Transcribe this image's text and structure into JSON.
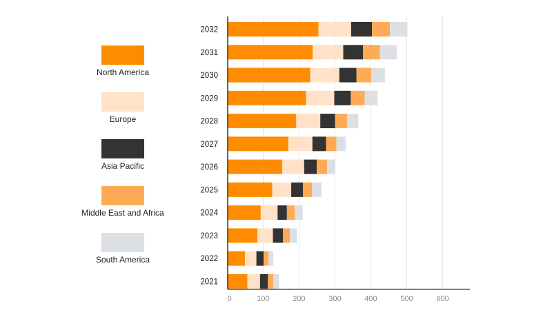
{
  "chart_data": {
    "type": "bar",
    "orientation": "horizontal",
    "stacked": true,
    "title": "",
    "xlabel": "",
    "ylabel": "",
    "categories": [
      "2032",
      "2031",
      "2030",
      "2029",
      "2028",
      "2027",
      "2026",
      "2025",
      "2024",
      "2023",
      "2022",
      "2021"
    ],
    "series": [
      {
        "name": "North America",
        "color": "#ff8c00",
        "values": [
          254,
          238,
          231,
          219,
          192,
          170,
          153,
          125,
          93,
          84,
          49,
          56
        ]
      },
      {
        "name": "Europe",
        "color": "#ffe2c7",
        "values": [
          91,
          85,
          81,
          79,
          67,
          67,
          61,
          53,
          47,
          43,
          32,
          35
        ]
      },
      {
        "name": "Asia Pacific",
        "color": "#333333",
        "values": [
          58,
          55,
          48,
          46,
          41,
          38,
          35,
          33,
          26,
          28,
          20,
          22
        ]
      },
      {
        "name": "Middle East and Africa",
        "color": "#ffab55",
        "values": [
          50,
          47,
          41,
          39,
          34,
          29,
          29,
          25,
          22,
          19,
          14,
          15
        ]
      },
      {
        "name": "South America",
        "color": "#dcdfe3",
        "values": [
          49,
          47,
          38,
          36,
          31,
          26,
          23,
          26,
          22,
          20,
          13,
          16
        ]
      }
    ],
    "xlim": [
      0,
      675
    ],
    "xticks": [
      0,
      100,
      200,
      300,
      400,
      500,
      600
    ],
    "grid": "vertical",
    "legend_position": "left"
  }
}
